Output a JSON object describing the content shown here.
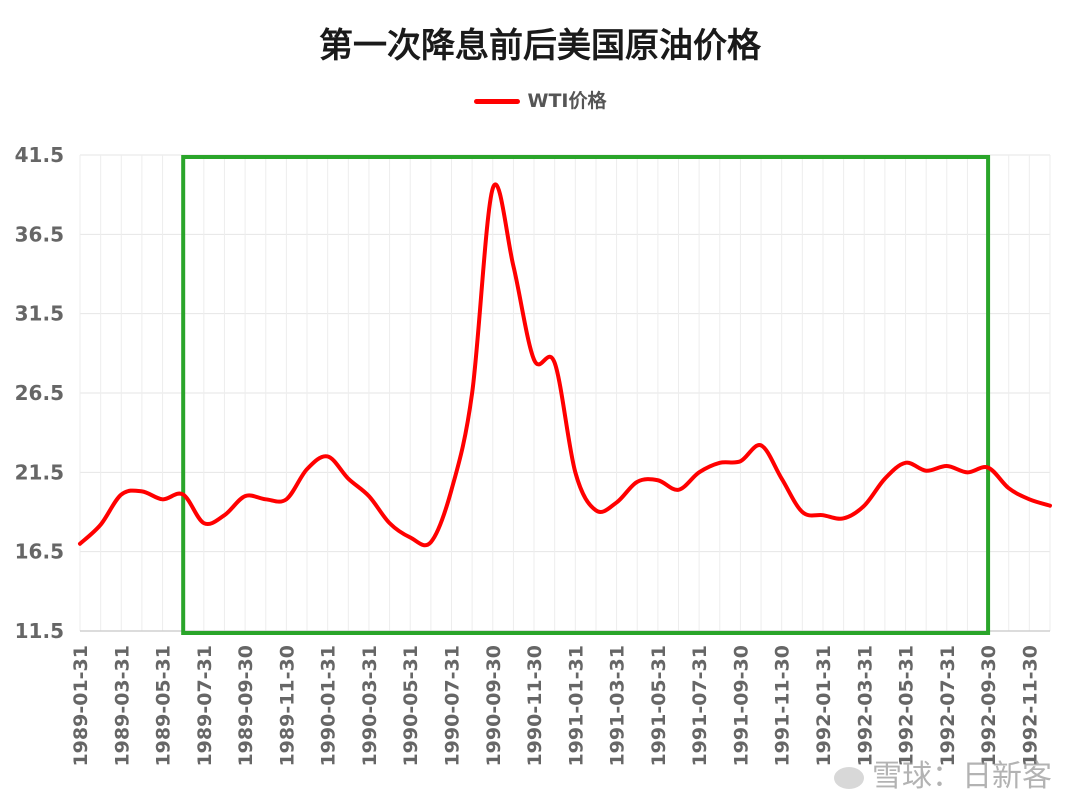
{
  "chart_data": {
    "type": "line",
    "title": "第一次降息前后美国原油价格",
    "series": [
      {
        "name": "WTI价格",
        "color": "#ff0000",
        "x": [
          "1989-01-31",
          "1989-02-28",
          "1989-03-31",
          "1989-04-30",
          "1989-05-31",
          "1989-06-30",
          "1989-07-31",
          "1989-08-31",
          "1989-09-30",
          "1989-10-31",
          "1989-11-30",
          "1989-12-31",
          "1990-01-31",
          "1990-02-28",
          "1990-03-31",
          "1990-04-30",
          "1990-05-31",
          "1990-06-30",
          "1990-07-31",
          "1990-08-31",
          "1990-09-30",
          "1990-10-31",
          "1990-11-30",
          "1990-12-31",
          "1991-01-31",
          "1991-02-28",
          "1991-03-31",
          "1991-04-30",
          "1991-05-31",
          "1991-06-30",
          "1991-07-31",
          "1991-08-31",
          "1991-09-30",
          "1991-10-31",
          "1991-11-30",
          "1991-12-31",
          "1992-01-31",
          "1992-02-29",
          "1992-03-31",
          "1992-04-30",
          "1992-05-31",
          "1992-06-30",
          "1992-07-31",
          "1992-08-31",
          "1992-09-30",
          "1992-10-31",
          "1992-11-30",
          "1992-12-31"
        ],
        "values": [
          17.0,
          18.2,
          20.1,
          20.3,
          19.8,
          20.1,
          18.3,
          18.8,
          20.0,
          19.8,
          19.8,
          21.7,
          22.5,
          21.1,
          20.0,
          18.3,
          17.4,
          17.1,
          20.4,
          26.5,
          39.4,
          34.5,
          28.6,
          28.4,
          21.5,
          19.1,
          19.6,
          20.9,
          21.0,
          20.4,
          21.5,
          22.1,
          22.2,
          23.2,
          21.1,
          19.0,
          18.8,
          18.6,
          19.4,
          21.1,
          22.1,
          21.6,
          21.9,
          21.5,
          21.8,
          20.5,
          19.8,
          19.4
        ]
      }
    ],
    "x_tick_labels": [
      "1989-01-31",
      "1989-03-31",
      "1989-05-31",
      "1989-07-31",
      "1989-09-30",
      "1989-11-30",
      "1990-01-31",
      "1990-03-31",
      "1990-05-31",
      "1990-07-31",
      "1990-09-30",
      "1990-11-30",
      "1991-01-31",
      "1991-03-31",
      "1991-05-31",
      "1991-07-31",
      "1991-09-30",
      "1991-11-30",
      "1992-01-31",
      "1992-03-31",
      "1992-05-31",
      "1992-07-31",
      "1992-09-30",
      "1992-11-30"
    ],
    "y_ticks": [
      "11.5",
      "16.5",
      "21.5",
      "26.5",
      "31.5",
      "36.5",
      "41.5"
    ],
    "ylim": [
      11.5,
      41.5
    ],
    "xlabel": "",
    "ylabel": "",
    "grid": true,
    "legend": "top-center",
    "highlight_box": {
      "from": "1989-06-30",
      "to": "1992-09-30",
      "color": "#2aa52a"
    }
  },
  "watermark": {
    "text": "雪球：日新客"
  }
}
